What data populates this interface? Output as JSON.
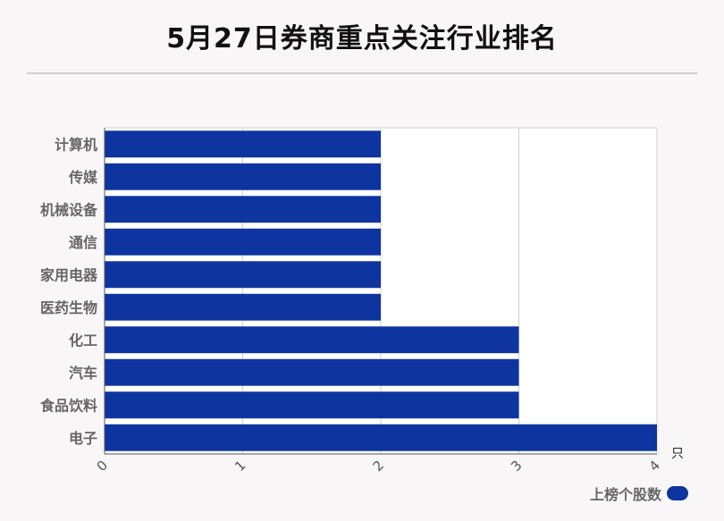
{
  "title": "5月27日券商重点关注行业排名",
  "chart_data": {
    "type": "bar",
    "orientation": "horizontal",
    "categories": [
      "计算机",
      "传媒",
      "机械设备",
      "通信",
      "家用电器",
      "医药生物",
      "化工",
      "汽车",
      "食品饮料",
      "电子"
    ],
    "series": [
      {
        "name": "上榜个股数",
        "values": [
          2,
          2,
          2,
          2,
          2,
          2,
          3,
          3,
          3,
          4
        ]
      }
    ],
    "x_ticks": [
      "0",
      "1",
      "2",
      "3",
      "4"
    ],
    "xlim": [
      0,
      4
    ],
    "x_unit": "只",
    "grid": true,
    "legend_position": "bottom-right",
    "bar_color": "#0e34a0"
  }
}
